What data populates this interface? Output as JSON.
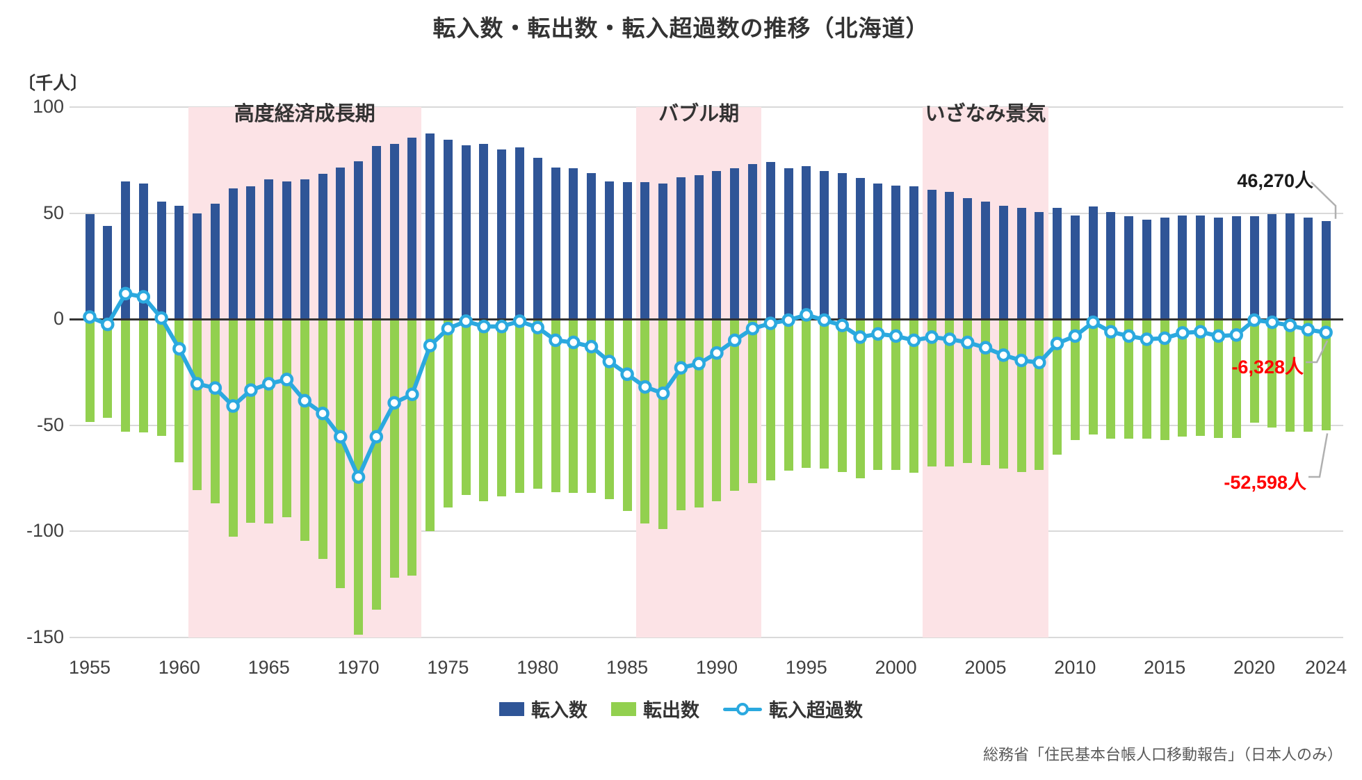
{
  "title": "転入数・転出数・転入超過数の推移（北海道）",
  "unit_label": "〔千人〕",
  "source": "総務省「住民基本台帳人口移動報告」（日本人のみ）",
  "legend": [
    {
      "label": "転入数",
      "type": "bar",
      "color": "#2f5597"
    },
    {
      "label": "転出数",
      "type": "bar",
      "color": "#92d04f"
    },
    {
      "label": "転入超過数",
      "type": "line",
      "color": "#2ba9df"
    }
  ],
  "annotations": {
    "in_latest": "46,270人",
    "net_latest": "-6,328人",
    "out_latest": "-52,598人"
  },
  "periods": [
    {
      "label": "高度経済成長期",
      "start": 1961,
      "end": 1973
    },
    {
      "label": "バブル期",
      "start": 1986,
      "end": 1992
    },
    {
      "label": "いざなみ景気",
      "start": 2002,
      "end": 2008
    }
  ],
  "chart_data": {
    "type": "bar+line",
    "title": "転入数・転出数・転入超過数の推移（北海道）",
    "ylabel": "〔千人〕",
    "ylim": [
      -150,
      100
    ],
    "yticks": [
      100,
      50,
      0,
      -50,
      -100,
      -150
    ],
    "grid": "horizontal",
    "legend_position": "bottom",
    "x": [
      1955,
      1956,
      1957,
      1958,
      1959,
      1960,
      1961,
      1962,
      1963,
      1964,
      1965,
      1966,
      1967,
      1968,
      1969,
      1970,
      1971,
      1972,
      1973,
      1974,
      1975,
      1976,
      1977,
      1978,
      1979,
      1980,
      1981,
      1982,
      1983,
      1984,
      1985,
      1986,
      1987,
      1988,
      1989,
      1990,
      1991,
      1992,
      1993,
      1994,
      1995,
      1996,
      1997,
      1998,
      1999,
      2000,
      2001,
      2002,
      2003,
      2004,
      2005,
      2006,
      2007,
      2008,
      2009,
      2010,
      2011,
      2012,
      2013,
      2014,
      2015,
      2016,
      2017,
      2018,
      2019,
      2020,
      2021,
      2022,
      2023,
      2024
    ],
    "x_tick_years": [
      1955,
      1960,
      1965,
      1970,
      1975,
      1980,
      1985,
      1990,
      1995,
      2000,
      2005,
      2010,
      2015,
      2020,
      2024
    ],
    "series": [
      {
        "name": "転入数",
        "type": "bar",
        "color": "#2f5597",
        "values": [
          49.5,
          44.0,
          65.0,
          64.0,
          55.5,
          53.5,
          50.0,
          54.5,
          61.5,
          62.5,
          66.0,
          65.0,
          66.0,
          68.5,
          71.5,
          74.5,
          81.5,
          82.5,
          85.5,
          87.5,
          84.5,
          82.0,
          82.5,
          80.0,
          81.0,
          76.0,
          71.5,
          71.0,
          69.0,
          65.0,
          64.5,
          64.5,
          64.0,
          67.0,
          68.0,
          70.0,
          71.0,
          73.0,
          74.0,
          71.0,
          72.0,
          70.0,
          69.0,
          66.5,
          64.0,
          63.0,
          62.5,
          61.0,
          60.0,
          57.0,
          55.5,
          53.5,
          52.5,
          50.5,
          52.5,
          49.0,
          53.0,
          50.5,
          48.5,
          47.0,
          48.0,
          49.0,
          49.0,
          48.0,
          48.5,
          48.5,
          49.5,
          50.0,
          48.0,
          46.3
        ]
      },
      {
        "name": "転出数",
        "type": "bar",
        "color": "#92d04f",
        "values": [
          -48.5,
          -46.5,
          -53.0,
          -53.5,
          -55.0,
          -67.5,
          -80.5,
          -87.0,
          -102.5,
          -96.0,
          -96.5,
          -93.5,
          -104.5,
          -113.0,
          -127.0,
          -149.0,
          -137.0,
          -122.0,
          -121.0,
          -100.0,
          -89.0,
          -83.0,
          -86.0,
          -83.5,
          -82.0,
          -80.0,
          -81.5,
          -82.0,
          -82.0,
          -85.0,
          -90.5,
          -96.5,
          -99.0,
          -90.0,
          -89.0,
          -86.0,
          -81.0,
          -77.5,
          -76.0,
          -71.5,
          -70.0,
          -70.5,
          -72.0,
          -75.0,
          -71.0,
          -71.0,
          -72.5,
          -69.5,
          -69.5,
          -68.0,
          -69.0,
          -70.5,
          -72.0,
          -71.0,
          -64.0,
          -57.0,
          -54.5,
          -56.5,
          -56.5,
          -56.5,
          -57.0,
          -55.5,
          -55.0,
          -56.0,
          -56.0,
          -49.0,
          -51.0,
          -53.0,
          -53.0,
          -52.6
        ]
      },
      {
        "name": "転入超過数",
        "type": "line",
        "color": "#2ba9df",
        "values": [
          1.0,
          -2.5,
          12.0,
          10.5,
          0.5,
          -14.0,
          -30.5,
          -32.5,
          -41.0,
          -33.5,
          -30.5,
          -28.5,
          -38.5,
          -44.5,
          -55.5,
          -74.5,
          -55.5,
          -39.5,
          -35.5,
          -12.5,
          -4.5,
          -1.0,
          -3.5,
          -3.5,
          -1.0,
          -4.0,
          -10.0,
          -11.0,
          -13.0,
          -20.0,
          -26.0,
          -32.0,
          -35.0,
          -23.0,
          -21.0,
          -16.0,
          -10.0,
          -4.5,
          -2.0,
          -0.5,
          2.0,
          -0.5,
          -3.0,
          -8.5,
          -7.0,
          -8.0,
          -10.0,
          -8.5,
          -9.5,
          -11.0,
          -13.5,
          -17.0,
          -19.5,
          -20.5,
          -11.5,
          -8.0,
          -1.5,
          -6.0,
          -8.0,
          -9.5,
          -9.0,
          -6.5,
          -6.0,
          -8.0,
          -7.5,
          -0.5,
          -1.5,
          -3.0,
          -5.0,
          -6.3
        ]
      }
    ]
  }
}
